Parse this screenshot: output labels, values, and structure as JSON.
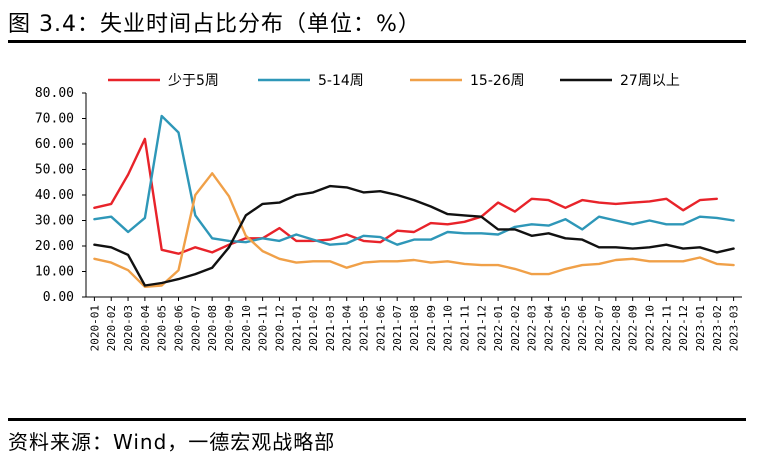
{
  "figure": {
    "title": "图 3.4：失业时间占比分布（单位：%）",
    "source": "资料来源：Wind，一德宏观战略部"
  },
  "chart_data": {
    "type": "line",
    "title": "",
    "xlabel": "",
    "ylabel": "",
    "ylim": [
      0,
      80
    ],
    "yticks": [
      "0.00",
      "10.00",
      "20.00",
      "30.00",
      "40.00",
      "50.00",
      "60.00",
      "70.00",
      "80.00"
    ],
    "grid": false,
    "legend_position": "top",
    "categories": [
      "2020-01",
      "2020-02",
      "2020-03",
      "2020-04",
      "2020-05",
      "2020-06",
      "2020-07",
      "2020-08",
      "2020-09",
      "2020-10",
      "2020-11",
      "2020-12",
      "2021-01",
      "2021-02",
      "2021-03",
      "2021-04",
      "2021-05",
      "2021-06",
      "2021-07",
      "2021-08",
      "2021-09",
      "2021-10",
      "2021-11",
      "2021-12",
      "2022-01",
      "2022-02",
      "2022-03",
      "2022-04",
      "2022-05",
      "2022-06",
      "2022-07",
      "2022-08",
      "2022-09",
      "2022-10",
      "2022-11",
      "2022-12",
      "2023-01",
      "2023-02",
      "2023-03"
    ],
    "series": [
      {
        "name": "少于5周",
        "color": "#e8232a",
        "values": [
          35.0,
          36.5,
          48.0,
          62.0,
          18.5,
          17.0,
          19.5,
          17.5,
          20.5,
          23.0,
          23.0,
          27.0,
          22.0,
          22.0,
          22.5,
          24.5,
          22.0,
          21.5,
          26.0,
          25.5,
          29.0,
          28.5,
          29.5,
          31.5,
          37.0,
          33.5,
          38.5,
          38.0,
          35.0,
          38.0,
          37.0,
          36.5,
          37.0,
          37.5,
          38.5,
          34.0,
          38.0,
          38.5,
          null
        ]
      },
      {
        "name": "5-14周",
        "color": "#2e97b8",
        "values": [
          30.5,
          31.5,
          25.5,
          31.0,
          71.0,
          64.5,
          32.0,
          23.0,
          22.0,
          21.5,
          23.0,
          22.0,
          24.5,
          22.5,
          20.5,
          21.0,
          24.0,
          23.5,
          20.5,
          22.5,
          22.5,
          25.5,
          25.0,
          25.0,
          24.5,
          27.5,
          28.5,
          28.0,
          30.5,
          26.5,
          31.5,
          30.0,
          28.5,
          30.0,
          28.5,
          28.5,
          31.5,
          31.0,
          30.0
        ]
      },
      {
        "name": "15-26周",
        "color": "#f0a048",
        "values": [
          15.0,
          13.5,
          10.5,
          4.0,
          4.5,
          10.5,
          40.0,
          48.5,
          39.5,
          24.0,
          18.0,
          15.0,
          13.5,
          14.0,
          14.0,
          11.5,
          13.5,
          14.0,
          14.0,
          14.5,
          13.5,
          14.0,
          13.0,
          12.5,
          12.5,
          11.0,
          9.0,
          9.0,
          11.0,
          12.5,
          13.0,
          14.5,
          15.0,
          14.0,
          14.0,
          14.0,
          15.5,
          13.0,
          12.5
        ]
      },
      {
        "name": "27周以上",
        "color": "#111111",
        "values": [
          20.5,
          19.5,
          16.5,
          4.5,
          5.5,
          7.0,
          9.0,
          11.5,
          19.5,
          32.0,
          36.5,
          37.0,
          40.0,
          41.0,
          43.5,
          43.0,
          41.0,
          41.5,
          40.0,
          38.0,
          35.5,
          32.5,
          32.0,
          31.5,
          26.5,
          26.5,
          24.0,
          25.0,
          23.0,
          22.5,
          19.5,
          19.5,
          19.0,
          19.5,
          20.5,
          19.0,
          19.5,
          17.5,
          19.0
        ]
      }
    ]
  }
}
